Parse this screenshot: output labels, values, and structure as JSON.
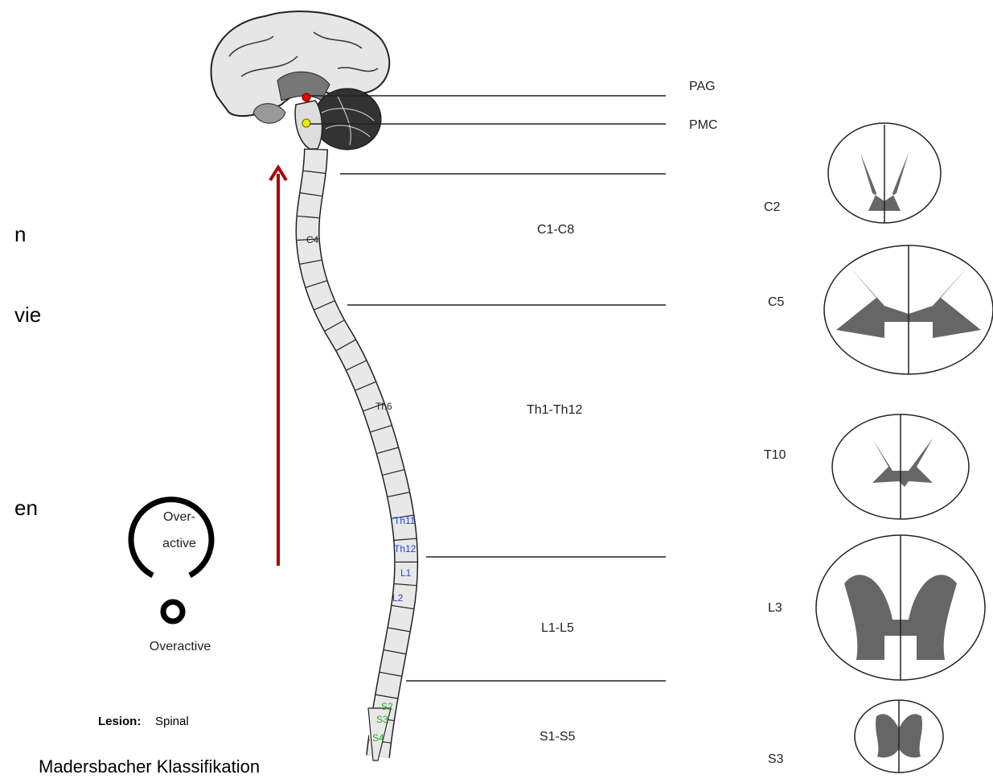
{
  "left_text": [
    "n",
    "vie",
    "en"
  ],
  "levels": {
    "pag": "PAG",
    "pmc": "PMC",
    "regions": [
      "C1-C8",
      "Th1-Th12",
      "L1-L5",
      "S1-S5"
    ]
  },
  "spine_labels": [
    "C4",
    "Th6",
    "Th11",
    "Th12",
    "L1",
    "L2",
    "S2",
    "S3",
    "S4"
  ],
  "cross_sections": [
    "C2",
    "C5",
    "T10",
    "L3",
    "S3"
  ],
  "legend": {
    "symbol_label_lines": [
      "Over-",
      "active"
    ],
    "symbol_name": "Overactive",
    "lesion_label": "Lesion:",
    "lesion_value": "Spinal"
  },
  "caption": "Madersbacher Klassifikation"
}
